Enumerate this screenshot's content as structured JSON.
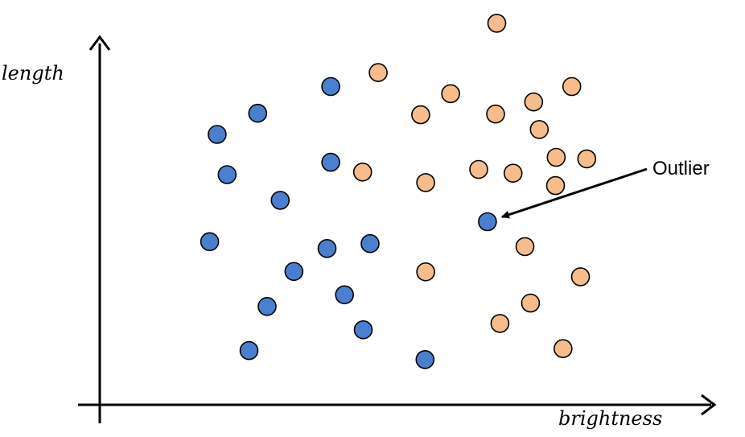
{
  "chart_data": {
    "type": "scatter",
    "title": "",
    "xlabel": "brightness",
    "ylabel": "length",
    "xlim": [
      0,
      100
    ],
    "ylim": [
      0,
      100
    ],
    "grid": false,
    "legend": "none",
    "tick_labels": false,
    "series": [
      {
        "color": "#4a7fcf",
        "points": [
          [
            37.0,
            81.3
          ],
          [
            25.3,
            74.2
          ],
          [
            18.8,
            68.6
          ],
          [
            20.4,
            57.9
          ],
          [
            37.0,
            61.2
          ],
          [
            28.9,
            51.1
          ],
          [
            17.6,
            40.1
          ],
          [
            36.4,
            38.3
          ],
          [
            43.3,
            39.6
          ],
          [
            31.1,
            32.2
          ],
          [
            39.2,
            26.0
          ],
          [
            26.8,
            22.9
          ],
          [
            42.2,
            16.7
          ],
          [
            23.9,
            11.2
          ],
          [
            52.1,
            8.8
          ],
          [
            62.1,
            45.4
          ]
        ]
      },
      {
        "color": "#f6bc8c",
        "points": [
          [
            63.6,
            98.1
          ],
          [
            44.6,
            85.0
          ],
          [
            56.2,
            79.4
          ],
          [
            75.6,
            81.3
          ],
          [
            69.5,
            77.2
          ],
          [
            51.4,
            73.8
          ],
          [
            63.4,
            74.0
          ],
          [
            70.4,
            69.9
          ],
          [
            73.1,
            62.5
          ],
          [
            78.0,
            62.1
          ],
          [
            42.1,
            58.6
          ],
          [
            60.7,
            59.3
          ],
          [
            66.2,
            58.3
          ],
          [
            73.0,
            55.0
          ],
          [
            52.2,
            55.8
          ],
          [
            68.1,
            38.8
          ],
          [
            52.2,
            32.1
          ],
          [
            77.0,
            30.8
          ],
          [
            69.0,
            23.8
          ],
          [
            64.1,
            18.4
          ],
          [
            74.2,
            11.7
          ]
        ]
      }
    ],
    "annotations": [
      {
        "text": "Outlier",
        "arrow_to": [
          62.1,
          45.4
        ]
      }
    ]
  }
}
